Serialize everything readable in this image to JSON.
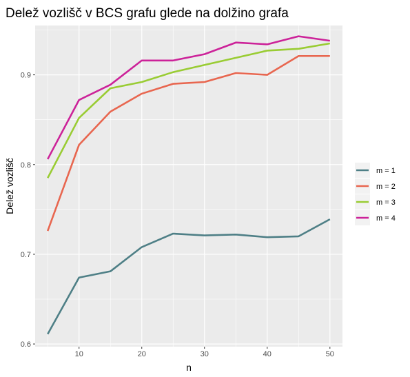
{
  "chart_data": {
    "type": "line",
    "title": "Delež vozlišč v BCS grafu glede na dolžino grafa",
    "xlabel": "n",
    "ylabel": "Delež vozlišč",
    "x": [
      5,
      10,
      15,
      20,
      25,
      30,
      35,
      40,
      45,
      50
    ],
    "xlim": [
      3,
      52
    ],
    "ylim": [
      0.597,
      0.955
    ],
    "xticks": [
      10,
      20,
      30,
      40,
      50
    ],
    "yticks": [
      0.6,
      0.7,
      0.8,
      0.9
    ],
    "ytick_labels": [
      "0.6",
      "0.7",
      "0.8",
      "0.9"
    ],
    "grid": true,
    "legend_position": "right",
    "series": [
      {
        "name": "m = 1",
        "color": "#4e7f86",
        "values": [
          0.611,
          0.674,
          0.681,
          0.708,
          0.723,
          0.721,
          0.722,
          0.719,
          0.72,
          0.739
        ]
      },
      {
        "name": "m = 2",
        "color": "#e8664f",
        "values": [
          0.726,
          0.822,
          0.859,
          0.879,
          0.89,
          0.892,
          0.902,
          0.9,
          0.921,
          0.921
        ]
      },
      {
        "name": "m = 3",
        "color": "#99cc33",
        "values": [
          0.785,
          0.852,
          0.885,
          0.892,
          0.903,
          0.911,
          0.919,
          0.927,
          0.929,
          0.935
        ]
      },
      {
        "name": "m = 4",
        "color": "#cc2299",
        "values": [
          0.806,
          0.872,
          0.889,
          0.916,
          0.916,
          0.923,
          0.936,
          0.934,
          0.943,
          0.938
        ]
      }
    ]
  }
}
